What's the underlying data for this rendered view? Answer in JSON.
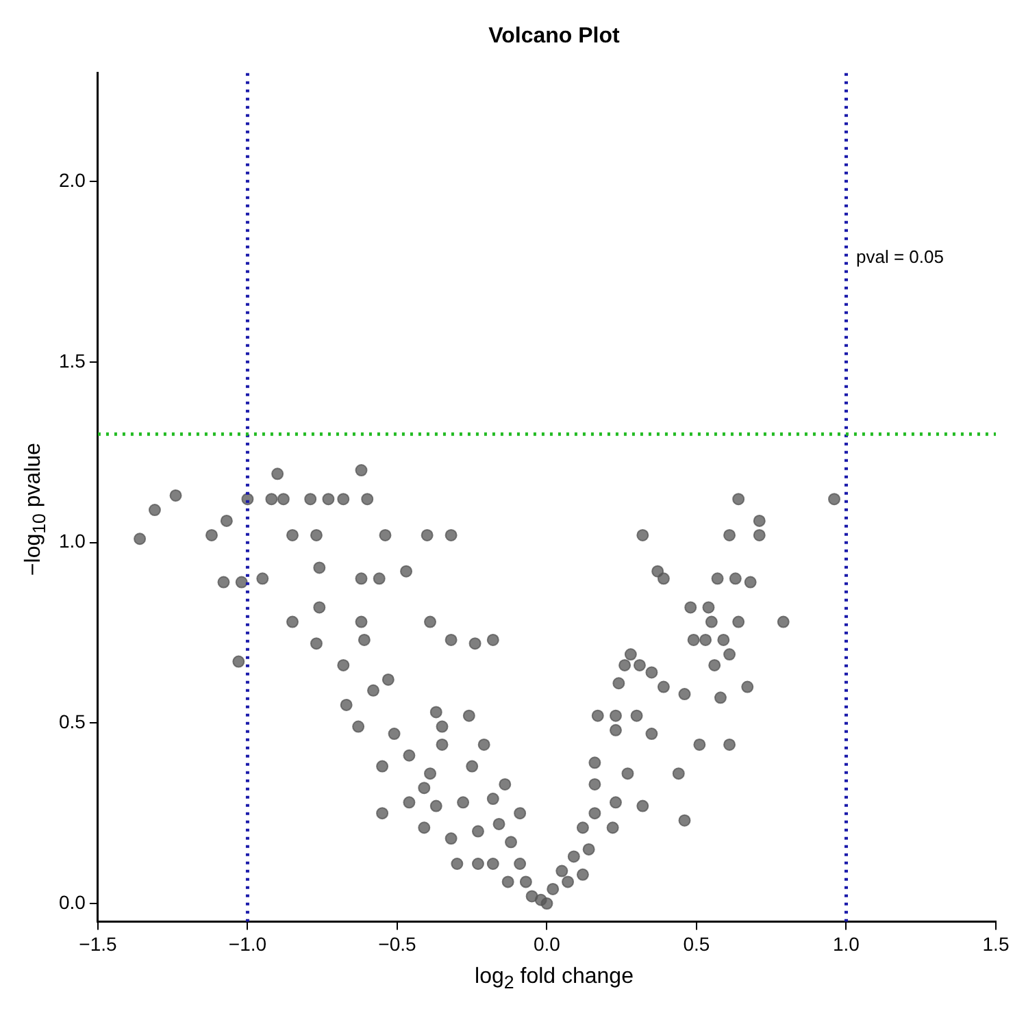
{
  "chart_data": {
    "type": "scatter",
    "title": "Volcano Plot",
    "xlabel": "log$_{2}$ fold change",
    "ylabel": "−log$_{10}$ pvalue",
    "marker": "circle",
    "grid": false,
    "legend": false,
    "xlim": [
      -1.5,
      1.5
    ],
    "xticks": [
      {
        "value": -1.5,
        "label": "−1.5"
      },
      {
        "value": -1,
        "label": "−1.0"
      },
      {
        "value": -0.5,
        "label": "−0.5"
      },
      {
        "value": 0,
        "label": "0.0"
      },
      {
        "value": 0.5,
        "label": "0.5"
      },
      {
        "value": 1,
        "label": "1.0"
      },
      {
        "value": 1.5,
        "label": "1.5"
      }
    ],
    "ylim": [
      -0.05,
      2.3
    ],
    "yticks": [
      {
        "value": 0,
        "label": "0.0"
      },
      {
        "value": 0.5,
        "label": "0.5"
      },
      {
        "value": 1,
        "label": "1.0"
      },
      {
        "value": 1.5,
        "label": "1.5"
      },
      {
        "value": 2,
        "label": "2.0"
      }
    ],
    "ref_lines": [
      {
        "axis": "x",
        "value": -1,
        "color": "#1a1aaa",
        "line_style": "dotted"
      },
      {
        "axis": "x",
        "value": 1,
        "color": "#1a1aaa",
        "line_style": "dotted"
      },
      {
        "axis": "y",
        "value": 1.3,
        "color": "#22bb22",
        "line_style": "dotted"
      }
    ],
    "annotations": [
      "pval = 0.05"
    ],
    "series": [
      {
        "color": "#555555",
        "x": [
          -1.36,
          -1.31,
          -1.24,
          -1.12,
          -1.07,
          -1.08,
          -1.02,
          -1.03,
          -1.0,
          -0.95,
          -0.9,
          -0.92,
          -0.88,
          -0.85,
          -0.79,
          -0.73,
          -0.68,
          -0.62,
          -0.77,
          -0.54,
          -0.76,
          -0.6,
          -0.47,
          -0.32,
          -0.4,
          -0.62,
          -0.56,
          -0.76,
          -0.85,
          -0.62,
          -0.77,
          -0.61,
          -0.39,
          -0.32,
          -0.18,
          -0.24,
          -0.68,
          -0.53,
          -0.63,
          -0.67,
          -0.51,
          -0.37,
          -0.26,
          -0.58,
          -0.46,
          -0.35,
          -0.55,
          -0.39,
          -0.25,
          -0.46,
          -0.37,
          -0.28,
          -0.18,
          -0.32,
          -0.23,
          -0.16,
          -0.12,
          -0.18,
          -0.09,
          -0.13,
          -0.07,
          -0.05,
          -0.02,
          0,
          -0.41,
          -0.23,
          -0.14,
          -0.21,
          -0.55,
          -0.35,
          -0.41,
          -0.09,
          -0.3,
          0.64,
          0.96,
          0.71,
          0.32,
          0.61,
          0.71,
          0.37,
          0.39,
          0.57,
          0.63,
          0.68,
          0.48,
          0.54,
          0.55,
          0.64,
          0.79,
          0.49,
          0.53,
          0.59,
          0.61,
          0.56,
          0.28,
          0.26,
          0.31,
          0.35,
          0.39,
          0.46,
          0.58,
          0.67,
          0.24,
          0.17,
          0.23,
          0.3,
          0.51,
          0.61,
          0.23,
          0.35,
          0.44,
          0.16,
          0.16,
          0.27,
          0.23,
          0.32,
          0.46,
          0.16,
          0.12,
          0.22,
          0.09,
          0.14,
          0.05,
          0.12,
          0.02,
          0.07
        ],
        "values": [
          1.01,
          1.09,
          1.13,
          1.02,
          1.06,
          0.89,
          0.89,
          0.67,
          1.12,
          0.9,
          1.19,
          1.12,
          1.12,
          1.02,
          1.12,
          1.12,
          1.12,
          1.2,
          1.02,
          1.02,
          0.93,
          1.12,
          0.92,
          1.02,
          1.02,
          0.9,
          0.9,
          0.82,
          0.78,
          0.78,
          0.72,
          0.73,
          0.78,
          0.73,
          0.73,
          0.72,
          0.66,
          0.62,
          0.49,
          0.55,
          0.47,
          0.53,
          0.52,
          0.59,
          0.41,
          0.44,
          0.38,
          0.36,
          0.38,
          0.28,
          0.27,
          0.28,
          0.29,
          0.18,
          0.2,
          0.22,
          0.17,
          0.11,
          0.11,
          0.06,
          0.06,
          0.02,
          0.01,
          0,
          0.21,
          0.11,
          0.33,
          0.44,
          0.25,
          0.49,
          0.32,
          0.25,
          0.11,
          1.12,
          1.12,
          1.06,
          1.02,
          1.02,
          1.02,
          0.92,
          0.9,
          0.9,
          0.9,
          0.89,
          0.82,
          0.82,
          0.78,
          0.78,
          0.78,
          0.73,
          0.73,
          0.73,
          0.69,
          0.66,
          0.69,
          0.66,
          0.66,
          0.64,
          0.6,
          0.58,
          0.57,
          0.6,
          0.61,
          0.52,
          0.52,
          0.52,
          0.44,
          0.44,
          0.48,
          0.47,
          0.36,
          0.39,
          0.33,
          0.36,
          0.28,
          0.27,
          0.23,
          0.25,
          0.21,
          0.21,
          0.13,
          0.15,
          0.09,
          0.08,
          0.04,
          0.06
        ]
      }
    ]
  }
}
